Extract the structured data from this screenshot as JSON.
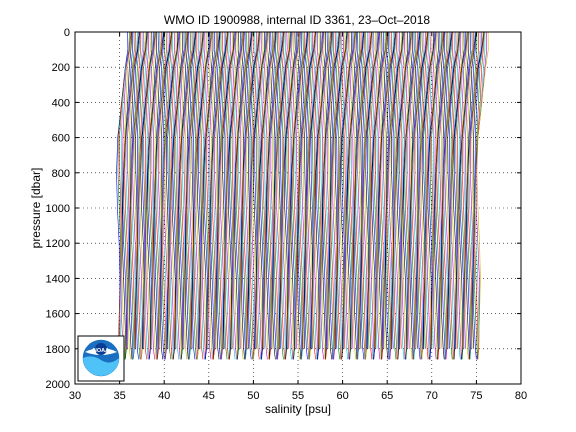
{
  "chart_data": {
    "type": "line",
    "title": "WMO ID 1900988, internal ID 3361, 23–Oct–2018",
    "xlabel": "salinity [psu]",
    "ylabel": "pressure [dbar]",
    "xlim": [
      30,
      80
    ],
    "ylim": [
      0,
      2000
    ],
    "y_reversed": true,
    "x_ticks": [
      30,
      35,
      40,
      45,
      50,
      55,
      60,
      65,
      70,
      75,
      80
    ],
    "y_ticks": [
      0,
      200,
      400,
      600,
      800,
      1000,
      1200,
      1400,
      1600,
      1800,
      2000
    ],
    "grid": "dotted",
    "profile_offset_psu": 0.1,
    "profiles_base_salinity_start": 35.0,
    "profile_count": 405,
    "typical_profile": {
      "pressure": [
        0,
        100,
        200,
        400,
        600,
        800,
        1000,
        1200,
        1400,
        1600,
        1800,
        1860
      ],
      "salinity": [
        35.9,
        35.8,
        35.5,
        35.2,
        34.9,
        34.8,
        34.8,
        34.85,
        34.9,
        34.9,
        34.95,
        34.95
      ]
    },
    "colors": [
      "#0000ff",
      "#008000",
      "#ff0000",
      "#00bfbf",
      "#bf00bf",
      "#bfbf00",
      "#000000"
    ],
    "logo": "noaa-logo"
  }
}
